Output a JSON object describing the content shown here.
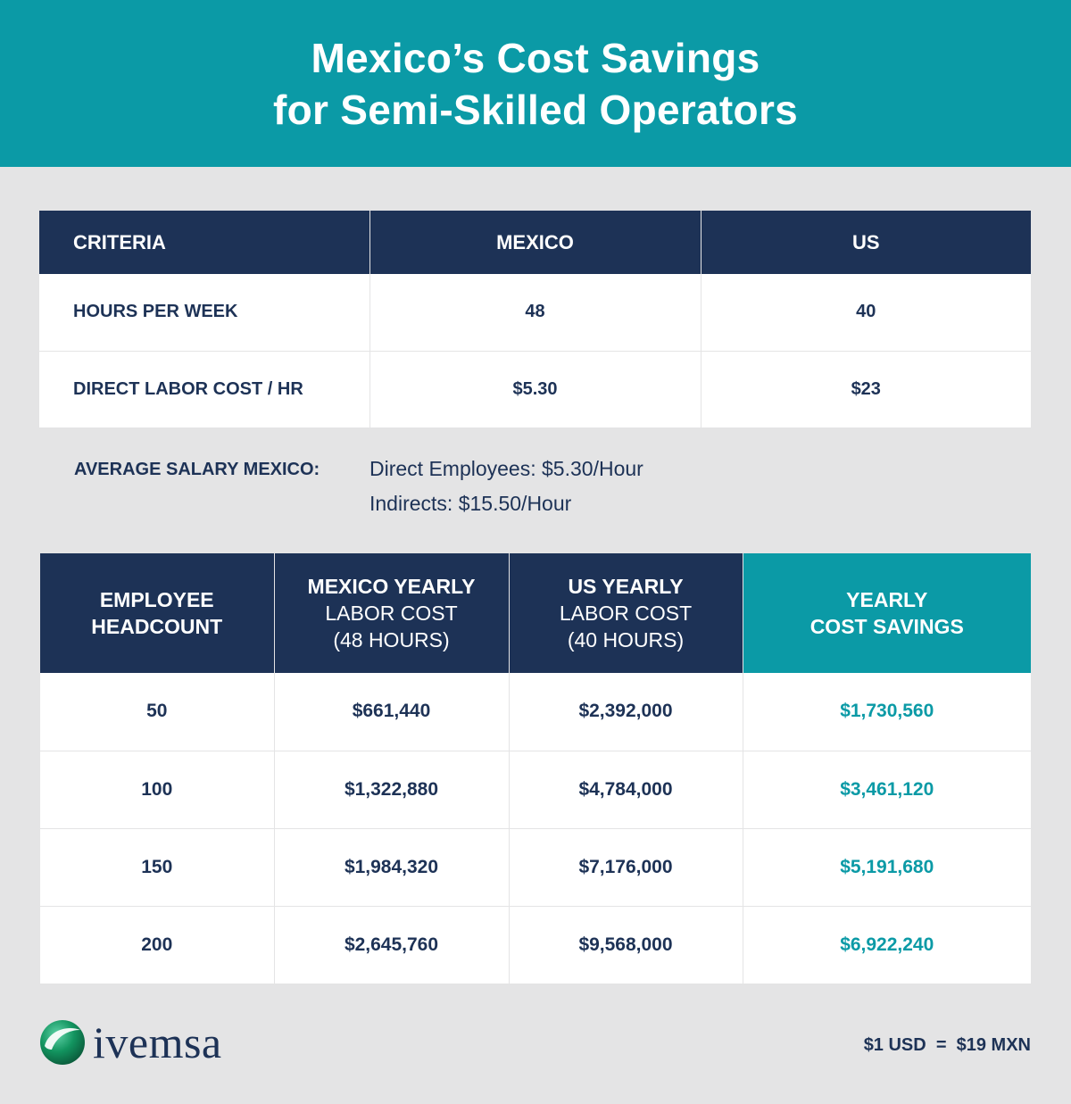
{
  "title": {
    "line1": "Mexico’s Cost Savings",
    "line2": "for Semi-Skilled Operators"
  },
  "criteria_table": {
    "headers": [
      "CRITERIA",
      "MEXICO",
      "US"
    ],
    "rows": [
      {
        "label": "HOURS PER WEEK",
        "mexico": "48",
        "us": "40"
      },
      {
        "label": "DIRECT LABOR COST / HR",
        "mexico": "$5.30",
        "us": "$23"
      }
    ]
  },
  "average_salary": {
    "label": "AVERAGE SALARY MEXICO:",
    "direct": "Direct Employees: $5.30/Hour",
    "indirect": "Indirects: $15.50/Hour"
  },
  "savings_table": {
    "headers": [
      {
        "bold": "EMPLOYEE",
        "bold2": "HEADCOUNT"
      },
      {
        "bold": "MEXICO YEARLY",
        "normal1": "LABOR COST",
        "normal2": "(48 HOURS)"
      },
      {
        "bold": "US YEARLY",
        "normal1": "LABOR COST",
        "normal2": "(40 HOURS)"
      },
      {
        "bold": "YEARLY",
        "bold2": "COST SAVINGS"
      }
    ],
    "rows": [
      {
        "headcount": "50",
        "mexico": "$661,440",
        "us": "$2,392,000",
        "savings": "$1,730,560"
      },
      {
        "headcount": "100",
        "mexico": "$1,322,880",
        "us": "$4,784,000",
        "savings": "$3,461,120"
      },
      {
        "headcount": "150",
        "mexico": "$1,984,320",
        "us": "$7,176,000",
        "savings": "$5,191,680"
      },
      {
        "headcount": "200",
        "mexico": "$2,645,760",
        "us": "$9,568,000",
        "savings": "$6,922,240"
      }
    ]
  },
  "logo": {
    "text": "ivemsa",
    "icon": "ivemsa-logo-icon"
  },
  "exchange_rate": "$1 USD  =  $19 MXN",
  "colors": {
    "teal": "#0b9aa6",
    "navy": "#1d3256",
    "background": "#e4e4e5"
  }
}
